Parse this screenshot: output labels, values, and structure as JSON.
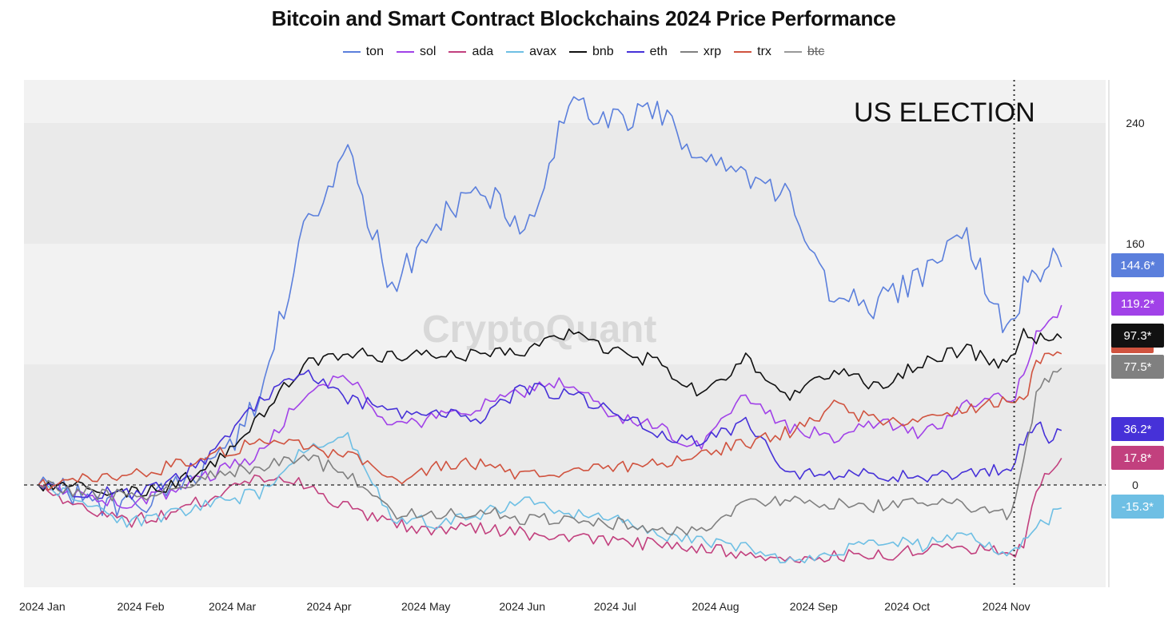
{
  "title": "Bitcoin and Smart Contract Blockchains 2024 Price Performance",
  "watermark": "CryptoQuant",
  "annotation": "US ELECTION",
  "chart_data": {
    "type": "line",
    "title": "Bitcoin and Smart Contract Blockchains 2024 Price Performance",
    "x_axis": {
      "ticks": [
        "2024 Jan",
        "2024 Feb",
        "2024 Mar",
        "2024 Apr",
        "2024 May",
        "2024 Jun",
        "2024 Jul",
        "2024 Aug",
        "2024 Sep",
        "2024 Oct",
        "2024 Nov"
      ],
      "range": [
        "2024-01-01",
        "2024-11-20"
      ]
    },
    "y_axis": {
      "ticks": [
        0,
        160,
        240
      ],
      "ylim": [
        -57,
        270
      ],
      "grid": "bands"
    },
    "reference_lines": [
      {
        "axis": "y",
        "value": 0,
        "style": "dashed"
      },
      {
        "axis": "x",
        "value": "2024-11-05",
        "style": "dotted",
        "label": "US ELECTION"
      }
    ],
    "x_days": [
      0,
      14,
      28,
      42,
      56,
      70,
      84,
      98,
      112,
      126,
      140,
      154,
      168,
      182,
      196,
      210,
      224,
      238,
      252,
      266,
      280,
      294,
      304,
      308,
      312,
      316,
      320,
      324
    ],
    "series": [
      {
        "name": "ton",
        "color": "#5b7fdc",
        "end_label": "144.6*",
        "values": [
          0,
          -10,
          -12,
          -6,
          15,
          55,
          168,
          220,
          130,
          175,
          200,
          165,
          258,
          240,
          252,
          215,
          200,
          190,
          120,
          120,
          140,
          165,
          110,
          105,
          130,
          140,
          150,
          144.6
        ]
      },
      {
        "name": "sol",
        "color": "#a142e8",
        "end_label": "119.2*",
        "values": [
          0,
          -6,
          -12,
          -4,
          8,
          20,
          60,
          72,
          38,
          44,
          52,
          62,
          68,
          46,
          38,
          25,
          60,
          38,
          32,
          42,
          34,
          52,
          62,
          55,
          72,
          100,
          108,
          119.2
        ]
      },
      {
        "name": "ada",
        "color": "#c2407e",
        "end_label": "17.8*",
        "values": [
          0,
          -15,
          -25,
          -18,
          -8,
          5,
          0,
          -15,
          -25,
          -30,
          -28,
          -32,
          -34,
          -36,
          -40,
          -42,
          -45,
          -48,
          -47,
          -46,
          -44,
          -42,
          -45,
          -46,
          -40,
          -5,
          10,
          17.8
        ]
      },
      {
        "name": "avax",
        "color": "#6ebfe4",
        "end_label": "-15.3*",
        "values": [
          0,
          -10,
          -26,
          -20,
          -12,
          -5,
          25,
          32,
          -22,
          -25,
          -20,
          -10,
          -18,
          -22,
          -32,
          -38,
          -42,
          -50,
          -45,
          -38,
          -40,
          -35,
          -42,
          -45,
          -38,
          -28,
          -22,
          -15.3
        ]
      },
      {
        "name": "bnb",
        "color": "#111111",
        "end_label": "97.3*",
        "values": [
          0,
          -2,
          -5,
          0,
          14,
          45,
          80,
          88,
          85,
          88,
          86,
          90,
          100,
          88,
          82,
          60,
          85,
          58,
          75,
          65,
          82,
          90,
          78,
          82,
          100,
          96,
          97,
          97.3
        ]
      },
      {
        "name": "eth",
        "color": "#4631d8",
        "end_label": "36.2*",
        "values": [
          0,
          -5,
          -6,
          2,
          22,
          55,
          78,
          58,
          48,
          50,
          44,
          65,
          60,
          50,
          35,
          28,
          42,
          5,
          8,
          6,
          5,
          8,
          10,
          12,
          30,
          42,
          30,
          36.2
        ]
      },
      {
        "name": "xrp",
        "color": "#808080",
        "end_label": "77.5*",
        "values": [
          0,
          -5,
          -8,
          -3,
          6,
          12,
          18,
          8,
          -18,
          -20,
          -18,
          -22,
          -22,
          -25,
          -28,
          -30,
          -12,
          -10,
          -12,
          -14,
          -13,
          -14,
          -20,
          -18,
          15,
          60,
          70,
          77.5
        ]
      },
      {
        "name": "trx",
        "color": "#d0533f",
        "end_label": "",
        "values": [
          0,
          4,
          8,
          12,
          20,
          28,
          25,
          20,
          3,
          12,
          15,
          5,
          10,
          12,
          15,
          20,
          28,
          35,
          52,
          42,
          45,
          50,
          55,
          52,
          55,
          80,
          85,
          87
        ]
      },
      {
        "name": "btc",
        "color": "#999999",
        "hidden": true,
        "end_label": "",
        "values": []
      }
    ],
    "legend": {
      "placement": "top-center"
    }
  }
}
